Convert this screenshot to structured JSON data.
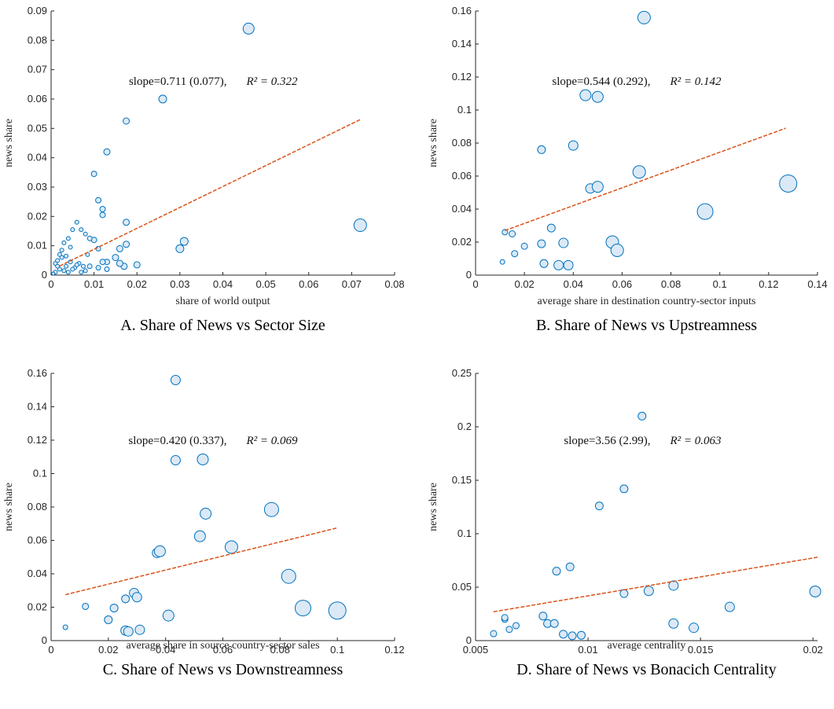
{
  "chart_data": [
    {
      "type": "scatter",
      "title": "A. Share of News vs Sector Size",
      "xlabel": "share of world output",
      "ylabel": "news share",
      "annotation": [
        "slope=0.711 (0.077),",
        "R² = 0.322"
      ],
      "x": [
        0.046,
        0.072,
        0.026,
        0.0175,
        0.013,
        0.01,
        0.011,
        0.012,
        0.012,
        0.0175,
        0.031,
        0.03,
        0.0175,
        0.02,
        0.017,
        0.016,
        0.015,
        0.016,
        0.013,
        0.012,
        0.01,
        0.009,
        0.011,
        0.013,
        0.011,
        0.006,
        0.007,
        0.008,
        0.005,
        0.004,
        0.003,
        0.002,
        0.001,
        0.0015,
        0.0025,
        0.0035,
        0.0045,
        0.0055,
        0.0065,
        0.0075,
        0.0085,
        0.002,
        0.003,
        0.004,
        0.005,
        0.006,
        0.007,
        0.001,
        0.0005,
        0.0015,
        0.0025,
        0.0035,
        0.009,
        0.008,
        0.0045
      ],
      "y": [
        0.084,
        0.017,
        0.06,
        0.0525,
        0.042,
        0.0345,
        0.0255,
        0.0225,
        0.0205,
        0.018,
        0.0115,
        0.009,
        0.0105,
        0.0035,
        0.003,
        0.004,
        0.006,
        0.009,
        0.0045,
        0.0045,
        0.012,
        0.0125,
        0.009,
        0.002,
        0.0025,
        0.018,
        0.0155,
        0.014,
        0.0155,
        0.0125,
        0.011,
        0.007,
        0.004,
        0.005,
        0.006,
        0.003,
        0.0045,
        0.0025,
        0.004,
        0.003,
        0.007,
        0.002,
        0.0015,
        0.001,
        0.002,
        0.0035,
        0.001,
        0.001,
        0.0005,
        0.003,
        0.0085,
        0.0065,
        0.003,
        0.0015,
        0.0095
      ],
      "sizes": [
        7,
        8,
        5,
        4,
        4,
        3.5,
        3.5,
        3.5,
        3.5,
        4,
        5,
        5,
        4,
        4,
        4,
        4,
        4,
        4,
        3.5,
        3.5,
        3.5,
        3,
        3,
        3,
        3,
        2.5,
        2.5,
        2.5,
        2.5,
        2.5,
        2.5,
        2.5,
        2.5,
        2.5,
        2.5,
        2.5,
        2.5,
        2.5,
        2.5,
        2.5,
        2.5,
        2.5,
        2.5,
        2.5,
        2.5,
        2.5,
        2.5,
        2.5,
        2,
        2.5,
        2.5,
        2.5,
        3,
        2.5,
        2.5
      ],
      "fit": {
        "x": [
          0.002,
          0.072
        ],
        "y": [
          0.0031,
          0.053
        ]
      },
      "xlim": [
        0,
        0.08
      ],
      "ylim": [
        0,
        0.09
      ],
      "xticks": [
        0,
        0.01,
        0.02,
        0.03,
        0.04,
        0.05,
        0.06,
        0.07,
        0.08
      ],
      "yticks": [
        0,
        0.01,
        0.02,
        0.03,
        0.04,
        0.05,
        0.06,
        0.07,
        0.08,
        0.09
      ],
      "color": "#0072bd",
      "fill": "#dbe9f6",
      "fit_color": "#d95319"
    },
    {
      "type": "scatter",
      "title": "B. Share of News vs Upstreamness",
      "xlabel": "average share in destination country-sector inputs",
      "ylabel": "news share",
      "annotation": [
        "slope=0.544 (0.292),",
        "R² = 0.142"
      ],
      "x": [
        0.069,
        0.045,
        0.05,
        0.027,
        0.04,
        0.067,
        0.047,
        0.05,
        0.128,
        0.094,
        0.056,
        0.058,
        0.031,
        0.036,
        0.027,
        0.02,
        0.015,
        0.012,
        0.016,
        0.011,
        0.028,
        0.034,
        0.038
      ],
      "y": [
        0.156,
        0.109,
        0.108,
        0.076,
        0.0785,
        0.0625,
        0.0525,
        0.0535,
        0.0555,
        0.0385,
        0.02,
        0.015,
        0.0285,
        0.0195,
        0.019,
        0.0175,
        0.025,
        0.026,
        0.013,
        0.008,
        0.007,
        0.006,
        0.006
      ],
      "sizes": [
        8,
        7,
        7,
        5,
        6,
        8,
        6,
        7,
        11,
        10,
        8,
        8,
        5,
        6,
        5,
        4,
        4,
        3.5,
        4,
        3,
        5,
        6,
        6
      ],
      "fit": {
        "x": [
          0.012,
          0.127
        ],
        "y": [
          0.027,
          0.089
        ]
      },
      "xlim": [
        0,
        0.14
      ],
      "ylim": [
        0,
        0.16
      ],
      "xticks": [
        0,
        0.02,
        0.04,
        0.06,
        0.08,
        0.1,
        0.12,
        0.14
      ],
      "yticks": [
        0,
        0.02,
        0.04,
        0.06,
        0.08,
        0.1,
        0.12,
        0.14,
        0.16
      ],
      "color": "#0072bd",
      "fill": "#dbe9f6",
      "fit_color": "#d95319"
    },
    {
      "type": "scatter",
      "title": "C. Share of News vs Downstreamness",
      "xlabel": "average share in source country-sector sales",
      "ylabel": "news share",
      "annotation": [
        "slope=0.420 (0.337),",
        "R² = 0.069"
      ],
      "x": [
        0.0435,
        0.0435,
        0.053,
        0.054,
        0.077,
        0.052,
        0.063,
        0.037,
        0.038,
        0.083,
        0.088,
        0.1,
        0.041,
        0.029,
        0.03,
        0.022,
        0.026,
        0.012,
        0.02,
        0.005,
        0.026,
        0.027,
        0.031
      ],
      "y": [
        0.156,
        0.108,
        0.1085,
        0.076,
        0.0785,
        0.0625,
        0.056,
        0.0525,
        0.0535,
        0.0385,
        0.0195,
        0.018,
        0.015,
        0.0285,
        0.026,
        0.0195,
        0.025,
        0.0205,
        0.0125,
        0.008,
        0.006,
        0.0055,
        0.0065
      ],
      "sizes": [
        6,
        6,
        7,
        7,
        9,
        7,
        8,
        6,
        7,
        9,
        10,
        11,
        7,
        6,
        6,
        5,
        5,
        4,
        5,
        3,
        6,
        6,
        6
      ],
      "fit": {
        "x": [
          0.005,
          0.1
        ],
        "y": [
          0.0275,
          0.0675
        ]
      },
      "xlim": [
        0,
        0.12
      ],
      "ylim": [
        0,
        0.16
      ],
      "xticks": [
        0,
        0.02,
        0.04,
        0.06,
        0.08,
        0.1,
        0.12
      ],
      "yticks": [
        0,
        0.02,
        0.04,
        0.06,
        0.08,
        0.1,
        0.12,
        0.14,
        0.16
      ],
      "color": "#0072bd",
      "fill": "#dbe9f6",
      "fit_color": "#d95319"
    },
    {
      "type": "scatter",
      "title": "D. Share of News vs Bonacich Centrality",
      "xlabel": "average centrality",
      "ylabel": "news share",
      "annotation": [
        "slope=3.56 (2.99),",
        "R² = 0.063"
      ],
      "x": [
        0.0124,
        0.0116,
        0.0105,
        0.0092,
        0.0086,
        0.0201,
        0.0127,
        0.0138,
        0.0116,
        0.0163,
        0.0138,
        0.0147,
        0.008,
        0.0082,
        0.0085,
        0.0063,
        0.0063,
        0.0068,
        0.0065,
        0.0058,
        0.0089,
        0.0093,
        0.0097
      ],
      "y": [
        0.21,
        0.142,
        0.126,
        0.069,
        0.065,
        0.046,
        0.0465,
        0.0515,
        0.044,
        0.0315,
        0.016,
        0.012,
        0.023,
        0.016,
        0.016,
        0.02,
        0.0215,
        0.014,
        0.0105,
        0.0065,
        0.006,
        0.0045,
        0.005
      ],
      "sizes": [
        5,
        5,
        5,
        5,
        5,
        7,
        6,
        6,
        5,
        6,
        6,
        6,
        5,
        5,
        5,
        4,
        4,
        4,
        4,
        4,
        5,
        5,
        5
      ],
      "fit": {
        "x": [
          0.0058,
          0.0202
        ],
        "y": [
          0.027,
          0.078
        ]
      },
      "xlim": [
        0.005,
        0.0202
      ],
      "ylim": [
        0,
        0.25
      ],
      "xticks": [
        0.005,
        0.01,
        0.015,
        0.02
      ],
      "yticks": [
        0,
        0.05,
        0.1,
        0.15,
        0.2,
        0.25
      ],
      "color": "#0072bd",
      "fill": "#dbe9f6",
      "fit_color": "#d95319"
    }
  ]
}
